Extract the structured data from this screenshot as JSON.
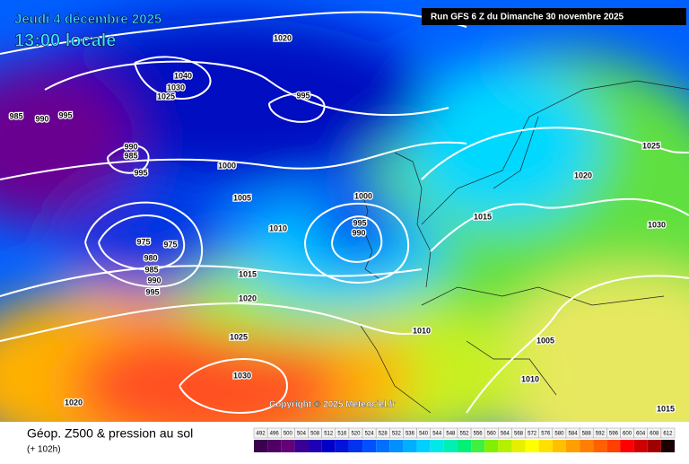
{
  "header": {
    "date": "Jeudi 4 décembre 2025",
    "time": "13:00 locale",
    "run": "Run GFS 6 Z du Dimanche 30 novembre 2025"
  },
  "copyright": "Copyright © 2025 Meteociel.fr",
  "footer": {
    "title": "Géop. Z500 & pression au sol",
    "lead": "(+ 102h)"
  },
  "isobar_labels": [
    1020,
    1040,
    1030,
    1025,
    995,
    985,
    990,
    995,
    990,
    985,
    995,
    1000,
    1005,
    1010,
    975,
    975,
    980,
    985,
    990,
    995,
    1000,
    995,
    990,
    1015,
    1020,
    1025,
    1030,
    1020,
    1015,
    1020,
    1025,
    1030,
    1010,
    1005,
    1010,
    1015
  ],
  "scale": {
    "values": [
      492,
      496,
      500,
      504,
      508,
      512,
      516,
      520,
      524,
      528,
      532,
      536,
      540,
      544,
      548,
      552,
      556,
      560,
      564,
      568,
      572,
      576,
      580,
      584,
      588,
      592,
      596,
      600,
      604,
      608,
      612
    ],
    "colors": [
      "#3c0050",
      "#500064",
      "#640078",
      "#3a0096",
      "#2000b4",
      "#0000c8",
      "#0014dc",
      "#0032f0",
      "#0050ff",
      "#0070ff",
      "#0090ff",
      "#00b0ff",
      "#00d0ff",
      "#00e8e8",
      "#00f0b4",
      "#00f078",
      "#40f040",
      "#80f000",
      "#b4f000",
      "#e6f000",
      "#ffff00",
      "#ffe000",
      "#ffc000",
      "#ffa000",
      "#ff8000",
      "#ff6000",
      "#ff4000",
      "#ff0000",
      "#d00000",
      "#a00000",
      "#1a0000"
    ]
  }
}
